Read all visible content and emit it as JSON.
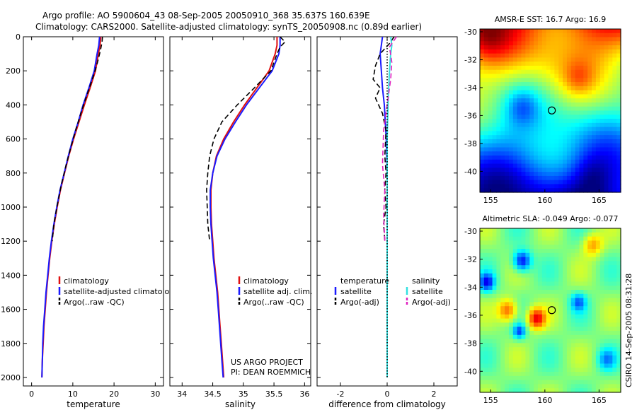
{
  "header": {
    "line1": "Argo profile: AO 5900604_43 08-Sep-2005 20050910_368 35.637S 160.639E",
    "line2": "Climatology: CARS2000. Satellite-adjusted climatology: synTS_20050908.nc (0.89d earlier)"
  },
  "side_note": "CSIRO 14-Sep-2005 08:31:28",
  "credit": {
    "line1": "US ARGO PROJECT",
    "line2": "PI: DEAN ROEMMICH"
  },
  "colors": {
    "red": "#e01010",
    "blue": "#1a1aff",
    "black": "#000000",
    "cyan": "#33e0e0",
    "magenta": "#e020c0"
  },
  "chart_data": [
    {
      "type": "line",
      "panel": "temperature",
      "xlabel": "temperature",
      "ylabel": "",
      "xlim": [
        -2,
        32
      ],
      "ylim": [
        2050,
        0
      ],
      "xticks": [
        0,
        10,
        20,
        30
      ],
      "yticks": [
        0,
        200,
        400,
        600,
        800,
        1000,
        1200,
        1400,
        1600,
        1800,
        2000
      ],
      "legend": [
        "climatology",
        "satellite-adjusted climatology",
        "Argo(..raw -QC)"
      ],
      "series": [
        {
          "name": "climatology",
          "color": "red",
          "style": "solid",
          "points": [
            [
              16.8,
              0
            ],
            [
              16.6,
              50
            ],
            [
              16.2,
              100
            ],
            [
              15.5,
              200
            ],
            [
              14.2,
              300
            ],
            [
              12.8,
              400
            ],
            [
              11.5,
              500
            ],
            [
              10.2,
              600
            ],
            [
              9.0,
              700
            ],
            [
              8.0,
              800
            ],
            [
              7.0,
              900
            ],
            [
              6.2,
              1000
            ],
            [
              5.5,
              1100
            ],
            [
              4.9,
              1200
            ],
            [
              4.4,
              1300
            ],
            [
              4.0,
              1400
            ],
            [
              3.6,
              1500
            ],
            [
              3.3,
              1600
            ],
            [
              3.0,
              1700
            ],
            [
              2.8,
              1800
            ],
            [
              2.6,
              1900
            ],
            [
              2.5,
              2000
            ]
          ]
        },
        {
          "name": "satellite-adjusted climatology",
          "color": "blue",
          "style": "solid",
          "points": [
            [
              16.5,
              0
            ],
            [
              16.3,
              50
            ],
            [
              15.9,
              100
            ],
            [
              15.2,
              200
            ],
            [
              13.9,
              300
            ],
            [
              12.5,
              400
            ],
            [
              11.3,
              500
            ],
            [
              10.0,
              600
            ],
            [
              8.9,
              700
            ],
            [
              7.9,
              800
            ],
            [
              6.9,
              900
            ],
            [
              6.1,
              1000
            ],
            [
              5.4,
              1100
            ],
            [
              4.8,
              1200
            ],
            [
              4.3,
              1300
            ],
            [
              3.9,
              1400
            ],
            [
              3.5,
              1500
            ],
            [
              3.2,
              1600
            ],
            [
              2.9,
              1700
            ],
            [
              2.7,
              1800
            ],
            [
              2.6,
              1900
            ],
            [
              2.5,
              2000
            ]
          ]
        },
        {
          "name": "Argo(..raw -QC)",
          "color": "black",
          "style": "dashed",
          "points": [
            [
              17.2,
              0
            ],
            [
              17.1,
              30
            ],
            [
              16.7,
              80
            ],
            [
              16.0,
              150
            ],
            [
              15.0,
              230
            ],
            [
              13.6,
              330
            ],
            [
              12.2,
              430
            ],
            [
              10.8,
              540
            ],
            [
              9.5,
              650
            ],
            [
              8.3,
              760
            ],
            [
              7.2,
              870
            ],
            [
              6.2,
              990
            ],
            [
              5.4,
              1100
            ],
            [
              5.0,
              1200
            ]
          ]
        }
      ]
    },
    {
      "type": "line",
      "panel": "salinity",
      "xlabel": "salinity",
      "ylabel": "",
      "xlim": [
        33.8,
        36.1
      ],
      "ylim": [
        2050,
        0
      ],
      "xticks": [
        34,
        34.5,
        35,
        35.5,
        36
      ],
      "legend": [
        "climatology",
        "satellite adj. clim.",
        "Argo(..raw -QC)"
      ],
      "series": [
        {
          "name": "climatology",
          "color": "red",
          "style": "solid",
          "points": [
            [
              35.55,
              0
            ],
            [
              35.55,
              50
            ],
            [
              35.52,
              100
            ],
            [
              35.42,
              200
            ],
            [
              35.22,
              300
            ],
            [
              35.02,
              400
            ],
            [
              34.84,
              500
            ],
            [
              34.68,
              600
            ],
            [
              34.56,
              700
            ],
            [
              34.5,
              800
            ],
            [
              34.47,
              900
            ],
            [
              34.47,
              1000
            ],
            [
              34.48,
              1100
            ],
            [
              34.5,
              1200
            ],
            [
              34.52,
              1300
            ],
            [
              34.55,
              1400
            ],
            [
              34.58,
              1500
            ],
            [
              34.6,
              1600
            ],
            [
              34.62,
              1700
            ],
            [
              34.64,
              1800
            ],
            [
              34.66,
              1900
            ],
            [
              34.68,
              2000
            ]
          ]
        },
        {
          "name": "satellite adj. clim.",
          "color": "blue",
          "style": "solid",
          "points": [
            [
              35.6,
              0
            ],
            [
              35.6,
              50
            ],
            [
              35.58,
              100
            ],
            [
              35.47,
              200
            ],
            [
              35.26,
              300
            ],
            [
              35.05,
              400
            ],
            [
              34.87,
              500
            ],
            [
              34.7,
              600
            ],
            [
              34.57,
              700
            ],
            [
              34.5,
              800
            ],
            [
              34.46,
              900
            ],
            [
              34.46,
              1000
            ],
            [
              34.47,
              1100
            ],
            [
              34.49,
              1200
            ],
            [
              34.51,
              1300
            ],
            [
              34.54,
              1400
            ],
            [
              34.57,
              1500
            ],
            [
              34.59,
              1600
            ],
            [
              34.61,
              1700
            ],
            [
              34.63,
              1800
            ],
            [
              34.65,
              1900
            ],
            [
              34.67,
              2000
            ]
          ]
        },
        {
          "name": "Argo(..raw -QC)",
          "color": "black",
          "style": "dashed",
          "points": [
            [
              35.6,
              0
            ],
            [
              35.68,
              30
            ],
            [
              35.6,
              60
            ],
            [
              35.55,
              100
            ],
            [
              35.45,
              200
            ],
            [
              35.18,
              300
            ],
            [
              34.9,
              400
            ],
            [
              34.65,
              500
            ],
            [
              34.52,
              600
            ],
            [
              34.45,
              700
            ],
            [
              34.42,
              800
            ],
            [
              34.4,
              900
            ],
            [
              34.41,
              1000
            ],
            [
              34.42,
              1100
            ],
            [
              34.45,
              1200
            ]
          ]
        }
      ]
    },
    {
      "type": "line",
      "panel": "difference",
      "xlabel": "difference from climatology",
      "ylabel": "",
      "xlim": [
        -3,
        3
      ],
      "ylim": [
        2050,
        0
      ],
      "xticks": [
        -2,
        0,
        2
      ],
      "legend": [
        "temperature",
        "satellite",
        "Argo(-adj)",
        "salinity",
        "satellite",
        "Argo(-adj)"
      ],
      "series": [
        {
          "name": "temperature satellite",
          "color": "blue",
          "style": "solid",
          "points": [
            [
              -0.2,
              0
            ],
            [
              -0.25,
              50
            ],
            [
              -0.3,
              100
            ],
            [
              -0.25,
              200
            ],
            [
              -0.2,
              300
            ],
            [
              -0.12,
              400
            ],
            [
              -0.08,
              500
            ],
            [
              -0.04,
              600
            ],
            [
              -0.02,
              700
            ],
            [
              0,
              800
            ],
            [
              0,
              1000
            ],
            [
              0,
              1400
            ]
          ]
        },
        {
          "name": "temperature Argo(-adj)",
          "color": "black",
          "style": "dashed",
          "points": [
            [
              0.3,
              0
            ],
            [
              0.1,
              40
            ],
            [
              -0.3,
              100
            ],
            [
              -0.5,
              170
            ],
            [
              -0.6,
              250
            ],
            [
              -0.3,
              300
            ],
            [
              -0.5,
              360
            ],
            [
              -0.2,
              450
            ],
            [
              -0.05,
              550
            ],
            [
              -0.1,
              700
            ],
            [
              -0.05,
              800
            ],
            [
              -0.1,
              900
            ],
            [
              -0.05,
              1000
            ],
            [
              -0.15,
              1100
            ],
            [
              -0.1,
              1200
            ]
          ]
        },
        {
          "name": "salinity satellite",
          "color": "cyan",
          "style": "solid",
          "points": [
            [
              0.15,
              0
            ],
            [
              0.2,
              50
            ],
            [
              0.15,
              100
            ],
            [
              0.1,
              200
            ],
            [
              0.05,
              350
            ],
            [
              0,
              600
            ],
            [
              0,
              2000
            ]
          ]
        },
        {
          "name": "salinity Argo(-adj)",
          "color": "magenta",
          "style": "dashed",
          "points": [
            [
              0.4,
              0
            ],
            [
              0.1,
              60
            ],
            [
              0.2,
              150
            ],
            [
              0.15,
              250
            ],
            [
              -0.15,
              550
            ],
            [
              -0.2,
              750
            ],
            [
              -0.1,
              900
            ],
            [
              -0.15,
              1050
            ],
            [
              -0.1,
              1200
            ]
          ]
        },
        {
          "name": "climatology",
          "color": "black",
          "style": "dotted",
          "points": [
            [
              0,
              0
            ],
            [
              0,
              2000
            ]
          ]
        }
      ]
    },
    {
      "type": "heatmap",
      "panel": "sst-map",
      "title": "AMSR-E SST: 16.7 Argo: 16.9",
      "xticks": [
        155,
        160,
        165
      ],
      "yticks": [
        -30,
        -32,
        -34,
        -36,
        -38,
        -40
      ],
      "xlim": [
        154,
        167
      ],
      "ylim": [
        -41.5,
        -29.8
      ],
      "marker": {
        "lon": 160.639,
        "lat": -35.637
      }
    },
    {
      "type": "heatmap",
      "panel": "sla-map",
      "title": "Altimetric SLA: -0.049 Argo: -0.077",
      "xticks": [
        155,
        160,
        165
      ],
      "yticks": [
        -30,
        -32,
        -34,
        -36,
        -38,
        -40
      ],
      "xlim": [
        154,
        167
      ],
      "ylim": [
        -41.5,
        -29.8
      ],
      "marker": {
        "lon": 160.639,
        "lat": -35.637
      }
    }
  ]
}
